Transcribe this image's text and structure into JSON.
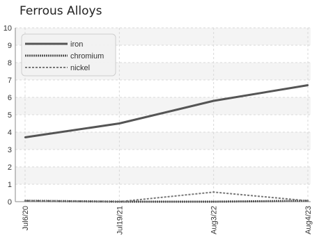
{
  "chart_data": {
    "type": "line",
    "title": "Ferrous Alloys",
    "xlabel": "",
    "ylabel": "",
    "categories": [
      "Jul6/20",
      "Jul19/21",
      "Aug3/22",
      "Aug4/23"
    ],
    "ylim": [
      0,
      10
    ],
    "yticks": [
      0,
      1,
      2,
      3,
      4,
      5,
      6,
      7,
      8,
      9,
      10
    ],
    "grid": true,
    "legend_position": "top-left",
    "series": [
      {
        "name": "iron",
        "values": [
          3.7,
          4.5,
          5.8,
          6.7
        ],
        "color": "#555555",
        "style": "solid"
      },
      {
        "name": "chromium",
        "values": [
          0.05,
          0.0,
          0.0,
          0.05
        ],
        "color": "#555555",
        "style": "dotted"
      },
      {
        "name": "nickel",
        "values": [
          0.05,
          0.0,
          0.55,
          0.05
        ],
        "color": "#777777",
        "style": "dashed"
      }
    ]
  }
}
